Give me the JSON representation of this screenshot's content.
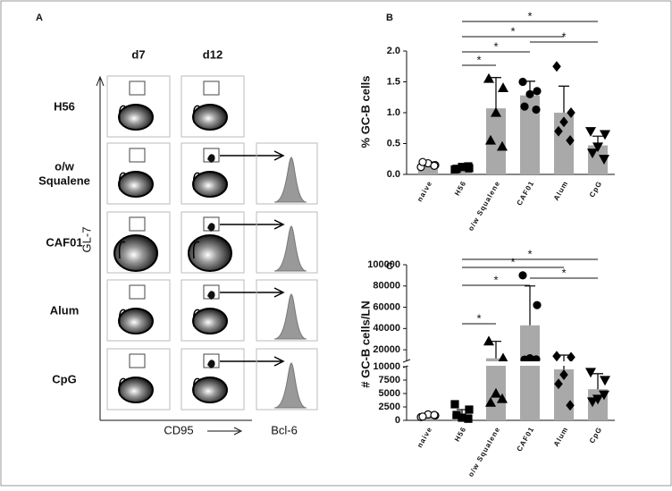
{
  "panel_a": {
    "label": "A",
    "columns": [
      "d7",
      "d12"
    ],
    "rows": [
      [
        "H56"
      ],
      [
        "o/w",
        "Squalene"
      ],
      [
        "CAF01"
      ],
      [
        "Alum"
      ],
      [
        "CpG"
      ]
    ],
    "y_axis": "GL-7",
    "x_axis": "CD95",
    "histogram_axis": "Bcl-6"
  },
  "chart_data": [
    {
      "type": "bar",
      "panel": "B",
      "y_label": "% GC-B cells",
      "categories": [
        "naive",
        "H56",
        "o/w Squalene",
        "CAF01",
        "Alum",
        "CpG"
      ],
      "values": [
        0.15,
        0.1,
        1.07,
        1.28,
        1.0,
        0.47
      ],
      "errors": [
        0.05,
        0.04,
        0.5,
        0.23,
        0.43,
        0.15
      ],
      "points": [
        [
          0.12,
          0.15,
          0.18,
          0.2,
          0.14
        ],
        [
          0.08,
          0.1,
          0.12,
          0.09,
          0.13
        ],
        [
          1.55,
          1.4,
          1.0,
          0.55,
          0.45
        ],
        [
          1.5,
          1.35,
          1.3,
          1.1,
          1.05
        ],
        [
          1.75,
          1.0,
          0.85,
          0.7,
          0.55
        ],
        [
          0.7,
          0.65,
          0.45,
          0.35,
          0.25
        ]
      ],
      "markers": [
        "circle-open",
        "square",
        "triangle",
        "circle",
        "diamond",
        "triangle-down"
      ],
      "color": "#a9a9a9",
      "ylim": [
        0,
        2
      ],
      "yticks": [
        {
          "value": 0,
          "label": "0.0"
        },
        {
          "value": 0.5,
          "label": "0.5"
        },
        {
          "value": 1,
          "label": "1.0"
        },
        {
          "value": 1.5,
          "label": "1.5"
        },
        {
          "value": 2,
          "label": "2.0"
        }
      ],
      "significance": [
        {
          "from": 1,
          "to": 5,
          "label": "*"
        },
        {
          "from": 1,
          "to": 4,
          "label": "*"
        },
        {
          "from": 1,
          "to": 3,
          "label": "*"
        },
        {
          "from": 3,
          "to": 5,
          "label": "*"
        },
        {
          "from": 1,
          "to": 2,
          "label": "*"
        }
      ]
    },
    {
      "type": "bar",
      "panel": "C",
      "y_label": "# GC-B cells/LN",
      "categories": [
        "naive",
        "H56",
        "o/w Squalene",
        "CAF01",
        "Alum",
        "CpG"
      ],
      "values": [
        900,
        1200,
        12000,
        43000,
        9500,
        5800
      ],
      "errors": [
        300,
        800,
        16000,
        37000,
        5500,
        2900
      ],
      "points": [
        [
          600,
          900,
          1100,
          700,
          1000
        ],
        [
          3000,
          2000,
          500,
          1000,
          300
        ],
        [
          28000,
          12000,
          5000,
          3300,
          4000
        ],
        [
          90000,
          62000,
          12000,
          10800,
          11000
        ],
        [
          14000,
          13000,
          8500,
          6800,
          2800
        ],
        [
          9000,
          7500,
          4000,
          3500,
          4800
        ]
      ],
      "markers": [
        "circle-open",
        "square",
        "triangle",
        "circle",
        "diamond",
        "triangle-down"
      ],
      "color": "#a9a9a9",
      "segments": [
        {
          "ylim": [
            0,
            10000
          ],
          "yticks": [
            0,
            2500,
            5000,
            7500,
            10000
          ]
        },
        {
          "ylim": [
            10000,
            100000
          ],
          "yticks": [
            10000,
            20000,
            40000,
            60000,
            80000,
            100000
          ]
        }
      ],
      "significance": [
        {
          "from": 1,
          "to": 5,
          "label": "*"
        },
        {
          "from": 1,
          "to": 4,
          "label": "*"
        },
        {
          "from": 1,
          "to": 3,
          "label": "*"
        },
        {
          "from": 3,
          "to": 5,
          "label": "*"
        },
        {
          "from": 1,
          "to": 2,
          "label": "*"
        }
      ]
    }
  ]
}
